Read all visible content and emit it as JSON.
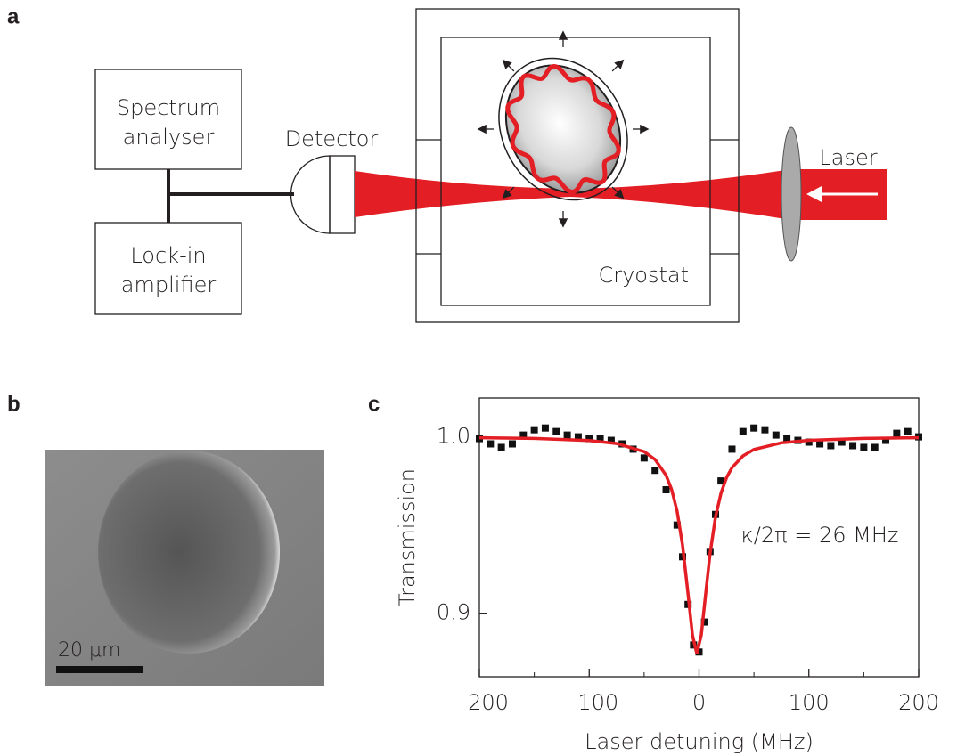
{
  "panel_labels": [
    "a",
    "b",
    "c"
  ],
  "diagram": {
    "spectrum_analyser": [
      "Spectrum",
      "analyser"
    ],
    "lock_in_amplifier": [
      "Lock-in",
      "amplifier"
    ],
    "detector": "Detector",
    "cryostat": "Cryostat",
    "laser": "Laser"
  },
  "image": {
    "scale_bar": "20 μm"
  },
  "chart_data": {
    "type": "scatter-fit",
    "xlabel": "Laser detuning (MHz)",
    "ylabel": "Transmission",
    "annotation": "κ/2π = 26 MHz",
    "xlim": [
      -200,
      200
    ],
    "ylim": [
      0.864,
      1.022
    ],
    "xticks": [
      {
        "value": -200,
        "label": "−200"
      },
      {
        "value": -100,
        "label": "−100"
      },
      0,
      100,
      200
    ],
    "xminorticks": [
      -150,
      -50,
      50,
      150
    ],
    "yticks": [
      {
        "value": 1,
        "label": "1.0"
      },
      0.9
    ],
    "series": [
      {
        "color": "#111111",
        "marker": "square",
        "x": [
          -200,
          -190,
          -180,
          -170,
          -160,
          -150,
          -140,
          -130,
          -120,
          -110,
          -100,
          -90,
          -80,
          -70,
          -60,
          -50,
          -40,
          -30,
          -20,
          -15,
          -10,
          -5,
          0,
          5,
          10,
          15,
          20,
          30,
          40,
          50,
          60,
          70,
          80,
          90,
          100,
          110,
          120,
          130,
          140,
          150,
          160,
          170,
          180,
          190,
          200
        ],
        "values": [
          0.999,
          0.996,
          0.994,
          0.996,
          1.001,
          1.004,
          1.005,
          1.003,
          1.001,
          1.0,
          0.999,
          0.999,
          0.998,
          0.996,
          0.993,
          0.988,
          0.981,
          0.97,
          0.95,
          0.932,
          0.905,
          0.882,
          0.878,
          0.895,
          0.935,
          0.956,
          0.975,
          0.993,
          1.003,
          1.005,
          1.004,
          1.001,
          0.999,
          0.998,
          0.997,
          0.996,
          0.995,
          0.997,
          0.995,
          0.994,
          0.994,
          0.998,
          1.002,
          1.003,
          1.0
        ]
      },
      {
        "color": "#e31e24",
        "marker": "line",
        "x": [
          -200,
          -150,
          -100,
          -75,
          -50,
          -40,
          -30,
          -25,
          -20,
          -15,
          -10,
          -6,
          -2,
          2,
          6,
          10,
          15,
          20,
          25,
          30,
          40,
          50,
          75,
          100,
          150,
          200
        ],
        "values": [
          0.9995,
          0.9991,
          0.9979,
          0.9962,
          0.9916,
          0.9871,
          0.9782,
          0.9702,
          0.9578,
          0.9385,
          0.9108,
          0.8876,
          0.877,
          0.8876,
          0.9108,
          0.9336,
          0.9546,
          0.9682,
          0.9768,
          0.9826,
          0.9892,
          0.9928,
          0.9966,
          0.998,
          0.9991,
          0.9995
        ]
      }
    ]
  }
}
